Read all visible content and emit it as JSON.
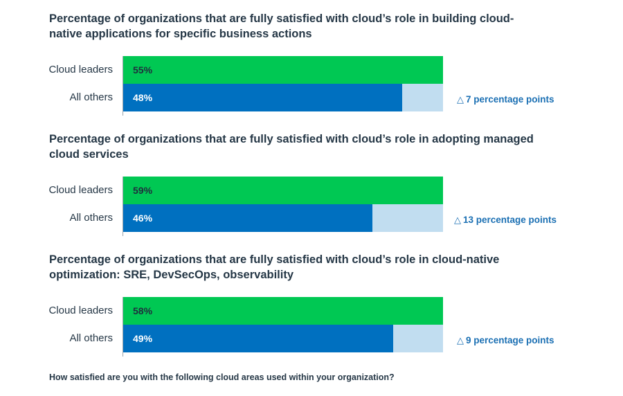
{
  "chart_data": [
    {
      "type": "bar",
      "orientation": "horizontal",
      "title": "Percentage of organizations that are fully satisfied with cloud’s role in building cloud-native applications for specific business actions",
      "categories": [
        "Cloud leaders",
        "All others"
      ],
      "values": [
        55,
        48
      ],
      "value_labels": [
        "55%",
        "48%"
      ],
      "delta_label": "7 percentage points",
      "xlim": [
        0,
        55
      ],
      "grid": false
    },
    {
      "type": "bar",
      "orientation": "horizontal",
      "title": "Percentage of organizations that are fully satisfied with cloud’s role in adopting managed cloud services",
      "categories": [
        "Cloud leaders",
        "All others"
      ],
      "values": [
        59,
        46
      ],
      "value_labels": [
        "59%",
        "46%"
      ],
      "delta_label": "13 percentage points",
      "xlim": [
        0,
        59
      ],
      "grid": false
    },
    {
      "type": "bar",
      "orientation": "horizontal",
      "title": "Percentage of organizations that are fully satisfied with cloud’s role in cloud-native optimization: SRE, DevSecOps, observability",
      "categories": [
        "Cloud leaders",
        "All others"
      ],
      "values": [
        58,
        49
      ],
      "value_labels": [
        "58%",
        "49%"
      ],
      "delta_label": "9 percentage points",
      "xlim": [
        0,
        58
      ],
      "grid": false
    }
  ],
  "footnote": "How satisfied are you with the following cloud areas used within your organization?",
  "colors": {
    "leaders_bar": "#00c853",
    "others_bar": "#0070c0",
    "track": "#c1ddf0",
    "leaders_label": "#1f2d3d",
    "others_label": "#ffffff",
    "delta_icon": "delta-triangle-icon"
  }
}
